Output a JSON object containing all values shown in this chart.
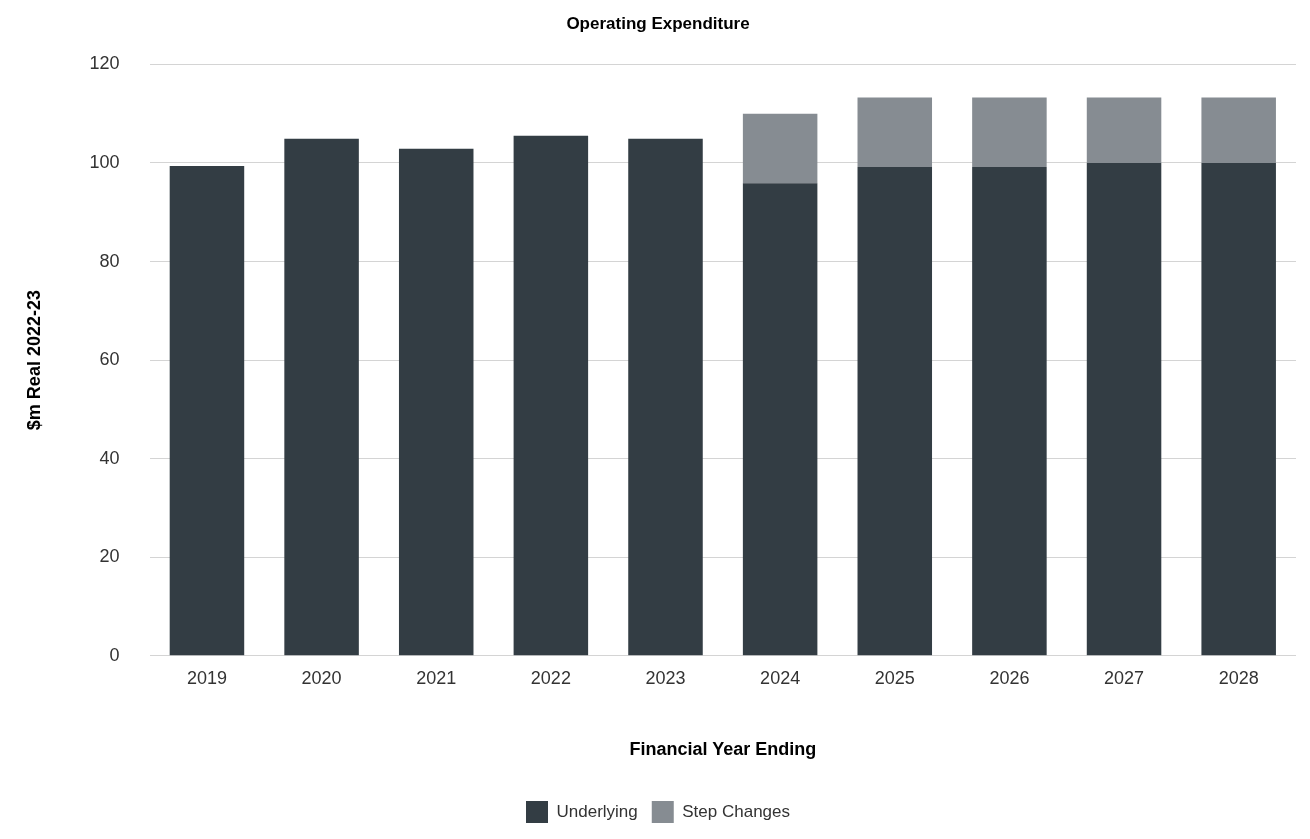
{
  "chart_data": {
    "type": "bar",
    "title": "Operating Expenditure",
    "xlabel": "Financial Year Ending",
    "ylabel": "$m Real 2022-23",
    "categories": [
      "2019",
      "2020",
      "2021",
      "2022",
      "2023",
      "2024",
      "2025",
      "2026",
      "2027",
      "2028"
    ],
    "series": [
      {
        "name": "Underlying",
        "color": "#333d44",
        "values": [
          99.4,
          104.9,
          102.9,
          105.5,
          104.9,
          95.9,
          99.2,
          99.2,
          100.0,
          100.0
        ]
      },
      {
        "name": "Step Changes",
        "color": "#868c92",
        "values": [
          null,
          null,
          null,
          null,
          null,
          14.1,
          14.1,
          14.1,
          13.3,
          13.3
        ]
      }
    ],
    "stacked": true,
    "ylim": [
      0,
      120
    ],
    "yticks": [
      0,
      20,
      40,
      60,
      80,
      100,
      120
    ],
    "grid": "y",
    "legend": "bottom"
  }
}
